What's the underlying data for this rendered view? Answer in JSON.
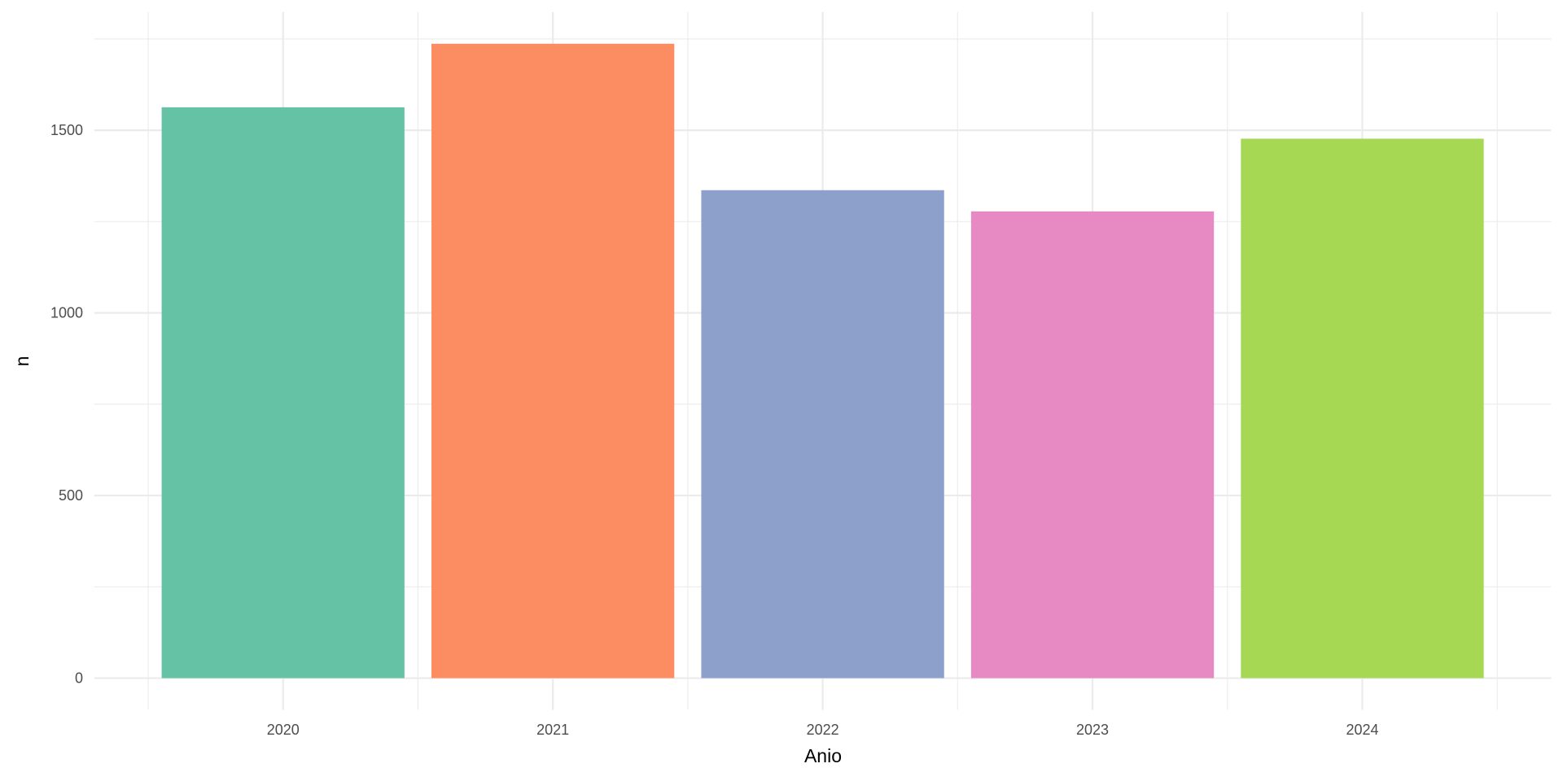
{
  "chart_data": {
    "type": "bar",
    "categories": [
      "2020",
      "2021",
      "2022",
      "2023",
      "2024"
    ],
    "values": [
      1563,
      1737,
      1336,
      1278,
      1477
    ],
    "colors": [
      "#66c2a5",
      "#fc8d62",
      "#8da0cb",
      "#e78ac3",
      "#a6d854"
    ],
    "title": "",
    "xlabel": "Anio",
    "ylabel": "n",
    "ylim": [
      -87,
      1824
    ],
    "yticks": [
      0,
      500,
      1000,
      1500
    ],
    "ytick_labels": [
      "0",
      "500",
      "1000",
      "1500"
    ],
    "grid": true,
    "legend": "none"
  }
}
